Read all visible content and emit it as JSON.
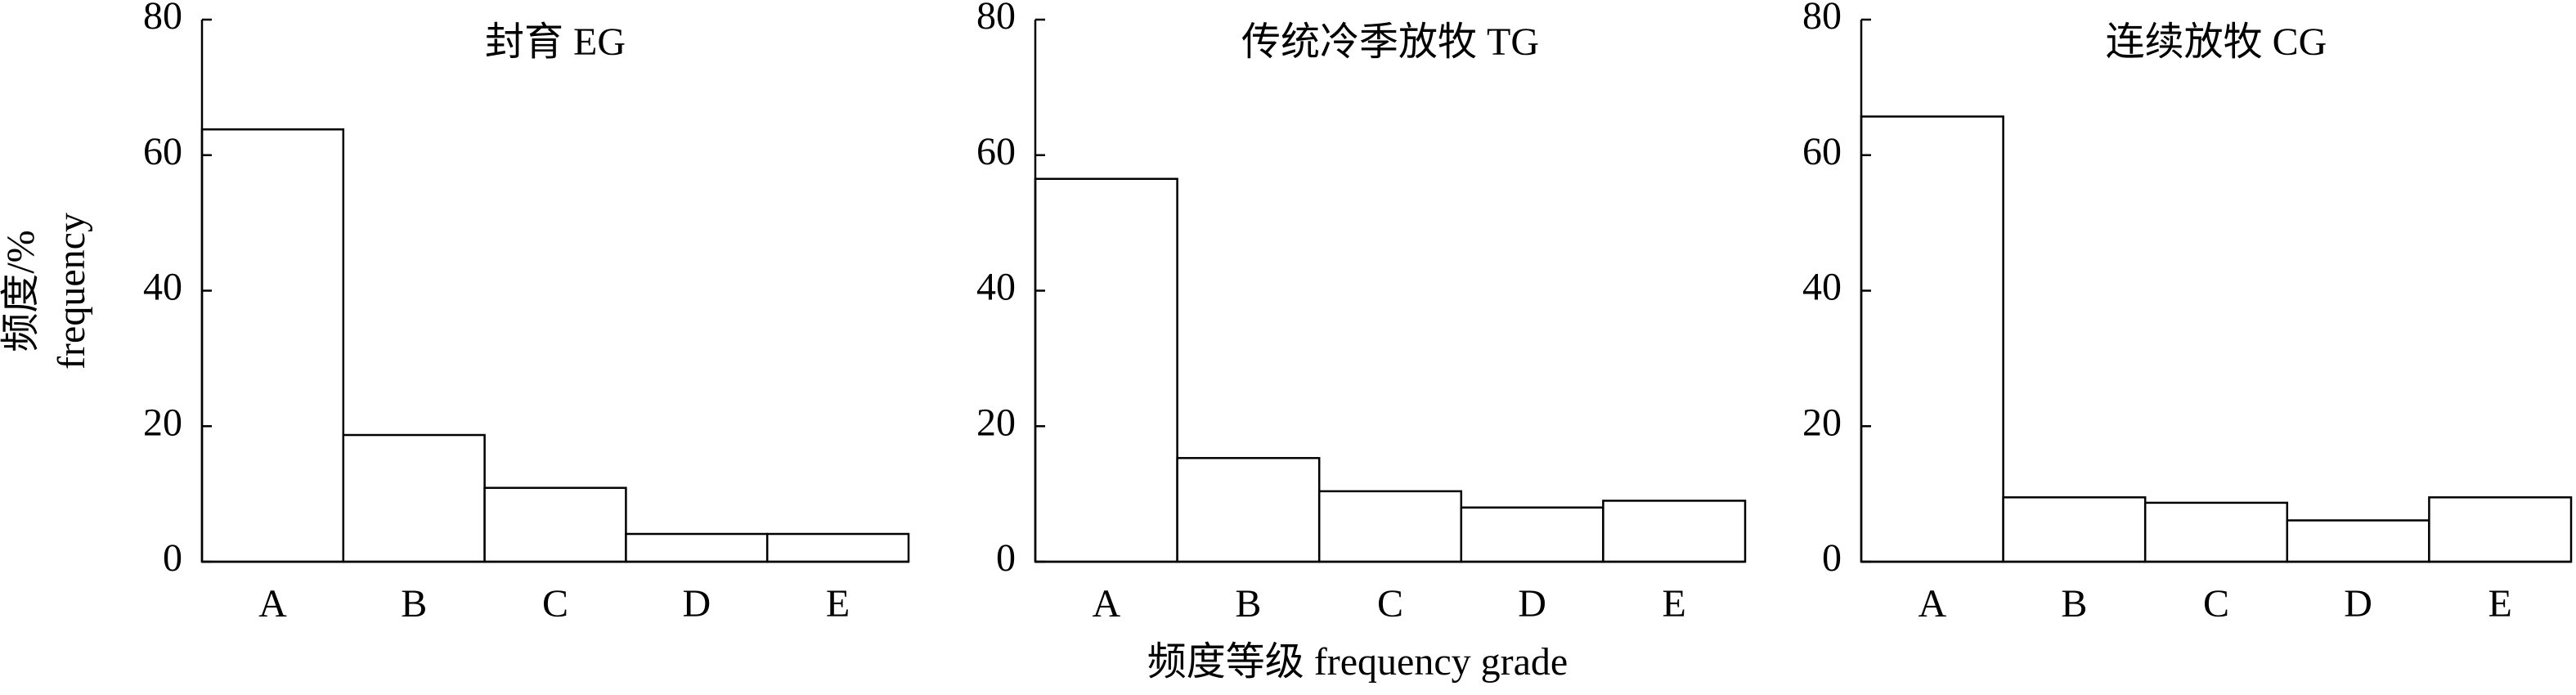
{
  "chart_data": [
    {
      "type": "bar",
      "title": "封育 EG",
      "ylabel": [
        "频度/%",
        "frequency"
      ],
      "categories": [
        "A",
        "B",
        "C",
        "D",
        "E"
      ],
      "values": [
        63.8,
        18.7,
        10.9,
        4.1,
        4.1
      ],
      "color": "#ffffff",
      "ylim": [
        0,
        80
      ],
      "yticks": [
        0,
        20,
        40,
        60,
        80
      ]
    },
    {
      "type": "bar",
      "title": "传统冷季放牧 TG",
      "xlabel": "频度等级 frequency grade",
      "categories": [
        "A",
        "B",
        "C",
        "D",
        "E"
      ],
      "values": [
        56.5,
        15.3,
        10.4,
        8.0,
        9.0
      ],
      "color": "#ffffff",
      "ylim": [
        0,
        80
      ],
      "yticks": [
        0,
        20,
        40,
        60,
        80
      ]
    },
    {
      "type": "bar",
      "title": "连续放牧 CG",
      "categories": [
        "A",
        "B",
        "C",
        "D",
        "E"
      ],
      "values": [
        65.7,
        9.5,
        8.7,
        6.1,
        9.5
      ],
      "color": "#ffffff",
      "ylim": [
        0,
        80
      ],
      "yticks": [
        0,
        20,
        40,
        60,
        80
      ]
    }
  ]
}
